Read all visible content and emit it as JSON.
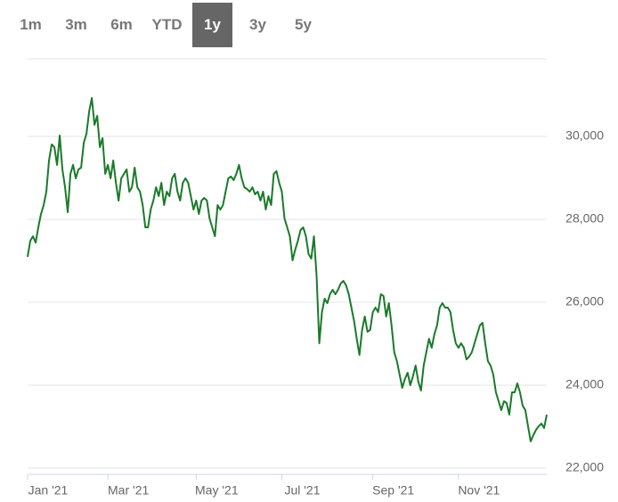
{
  "period_buttons": {
    "options": [
      "1m",
      "3m",
      "6m",
      "YTD",
      "1y",
      "3y",
      "5y"
    ],
    "selected": 4
  },
  "chart_data": {
    "type": "line",
    "series": [
      {
        "color": "#1a7a2a",
        "values": [
          27096,
          27483,
          27591,
          27440,
          27806,
          28129,
          28344,
          28667,
          29419,
          29806,
          29742,
          29312,
          30021,
          29204,
          28774,
          28172,
          29097,
          29312,
          28989,
          29204,
          29247,
          29849,
          30064,
          30602,
          30925,
          30279,
          30494,
          29742,
          29957,
          29097,
          29312,
          28989,
          29419,
          28882,
          28452,
          28989,
          29097,
          29204,
          28667,
          28774,
          29247,
          28774,
          28667,
          28344,
          27806,
          27806,
          28236,
          28452,
          28774,
          28559,
          28882,
          28344,
          28667,
          28559,
          28989,
          29097,
          28667,
          28452,
          28882,
          28989,
          28882,
          28559,
          28236,
          28452,
          28129,
          28452,
          28516,
          28452,
          28021,
          27806,
          27591,
          28344,
          28236,
          28344,
          28667,
          28989,
          29032,
          28946,
          29097,
          29312,
          28989,
          28774,
          28731,
          28667,
          28774,
          28602,
          28667,
          28452,
          28667,
          28236,
          28559,
          28344,
          29097,
          29161,
          28882,
          28667,
          28021,
          27806,
          27591,
          27011,
          27269,
          27483,
          27742,
          27806,
          27591,
          27161,
          27054,
          27591,
          26624,
          25011,
          25764,
          26086,
          25979,
          26194,
          26301,
          26194,
          26301,
          26452,
          26516,
          26409,
          26194,
          25871,
          25548,
          25118,
          24731,
          25333,
          25656,
          25290,
          25333,
          25764,
          25871,
          25764,
          26194,
          26151,
          25656,
          25979,
          25441,
          24796,
          24581,
          24258,
          23936,
          24151,
          24301,
          24000,
          24215,
          24473,
          24086,
          23871,
          24473,
          24796,
          25118,
          24903,
          25226,
          25441,
          25871,
          25979,
          25871,
          25871,
          25764,
          25333,
          25011,
          24903,
          25011,
          24903,
          24623,
          24688,
          24796,
          25011,
          25226,
          25441,
          25505,
          25011,
          24581,
          24473,
          24258,
          23828,
          23613,
          23398,
          23613,
          23570,
          23290,
          23828,
          23828,
          24043,
          23828,
          23505,
          23398,
          23011,
          22645,
          22796,
          22925,
          23011,
          23075,
          22968,
          23290
        ]
      }
    ],
    "xlim": [
      0,
      194
    ],
    "xticks": [
      {
        "value": 0,
        "label": "Jan '21"
      },
      {
        "value": 30,
        "label": "Mar '21"
      },
      {
        "value": 63,
        "label": "May '21"
      },
      {
        "value": 95,
        "label": "Jul '21"
      },
      {
        "value": 129,
        "label": "Sep '21"
      },
      {
        "value": 161,
        "label": "Nov '21"
      }
    ],
    "ylim": [
      21850,
      31870
    ],
    "yticks": [
      {
        "value": 22000,
        "label": "22,000"
      },
      {
        "value": 24000,
        "label": "24,000"
      },
      {
        "value": 26000,
        "label": "26,000"
      },
      {
        "value": 28000,
        "label": "28,000"
      },
      {
        "value": 30000,
        "label": "30,000"
      }
    ],
    "grid": true
  }
}
